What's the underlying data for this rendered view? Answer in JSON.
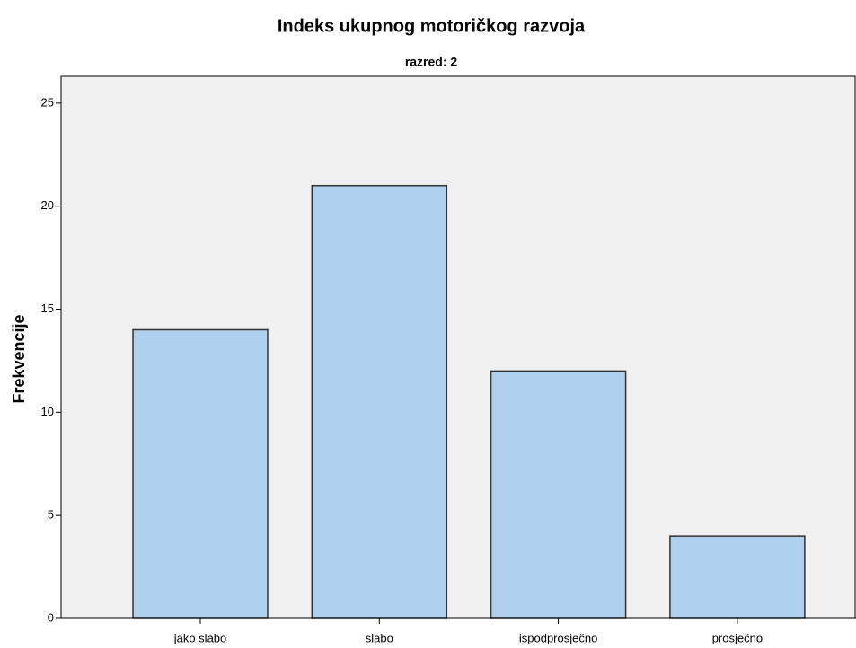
{
  "chart_data": {
    "type": "bar",
    "title": "Indeks ukupnog motoričkog razvoja",
    "subtitle": "razred: 2",
    "y_label": "Frekvencije",
    "categories": [
      "jako slabo",
      "slabo",
      "ispodprosječno",
      "prosječno"
    ],
    "values": [
      14,
      21,
      12,
      4
    ],
    "color": "#aecfed",
    "ylim": [
      0,
      26.3
    ],
    "yticks": [
      0,
      5,
      10,
      15,
      20,
      25
    ],
    "grid": false
  }
}
